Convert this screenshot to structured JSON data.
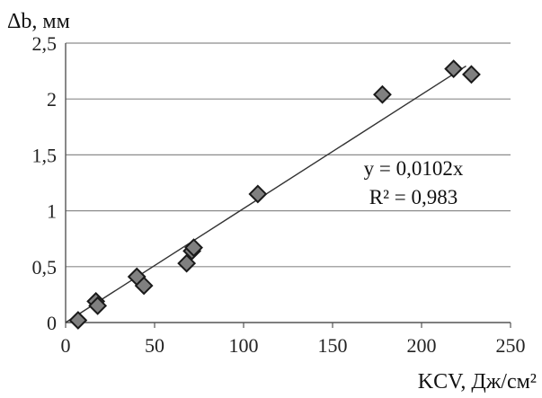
{
  "chart_data": {
    "type": "scatter",
    "ylabel": "Δb, мм",
    "xlabel": "KCV, Дж/см²",
    "xlim": [
      0,
      250
    ],
    "ylim": [
      0,
      2.5
    ],
    "x_ticks": [
      "0",
      "50",
      "100",
      "150",
      "200",
      "250"
    ],
    "y_ticks": [
      "0",
      "0,5",
      "1",
      "1,5",
      "2",
      "2,5"
    ],
    "grid": "horizontal",
    "points": [
      {
        "x": 7,
        "y": 0.02
      },
      {
        "x": 17,
        "y": 0.19
      },
      {
        "x": 18,
        "y": 0.15
      },
      {
        "x": 40,
        "y": 0.41
      },
      {
        "x": 44,
        "y": 0.33
      },
      {
        "x": 68,
        "y": 0.53
      },
      {
        "x": 71,
        "y": 0.64
      },
      {
        "x": 72,
        "y": 0.67
      },
      {
        "x": 108,
        "y": 1.15
      },
      {
        "x": 178,
        "y": 2.04
      },
      {
        "x": 218,
        "y": 2.27
      },
      {
        "x": 228,
        "y": 2.22
      }
    ],
    "trendline": {
      "slope": 0.0102,
      "x_range": [
        0,
        225
      ],
      "equation": "y = 0,0102x",
      "r2": "R² = 0,983"
    },
    "colors": {
      "marker_fill": "#808080",
      "marker_stroke": "#1a1a1a",
      "gridline": "#8c8c8c",
      "trendline": "#333333"
    }
  }
}
